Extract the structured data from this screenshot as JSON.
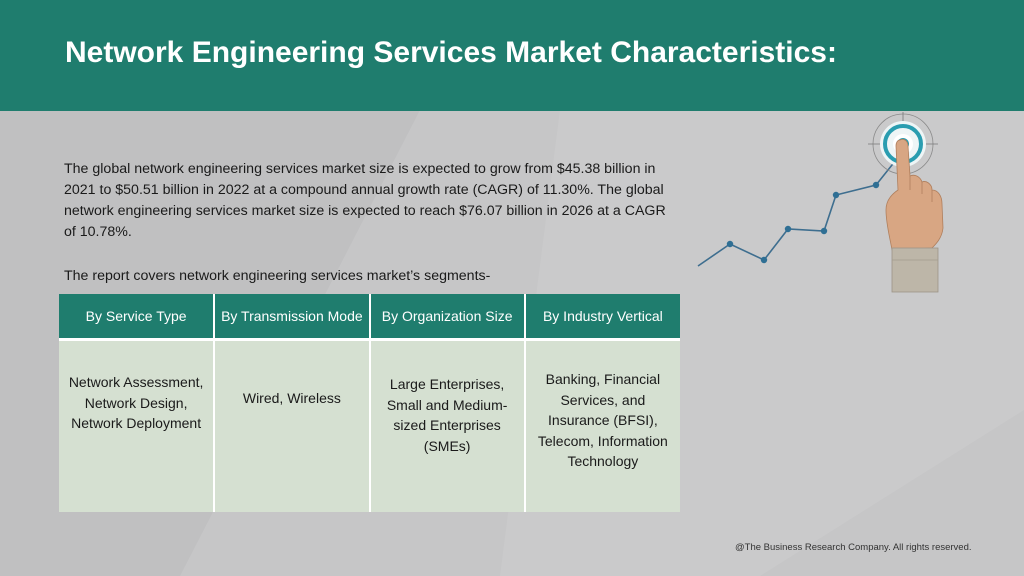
{
  "header": {
    "title": "Network Engineering Services Market Characteristics:"
  },
  "intro": {
    "paragraph": "The global network engineering services market size is expected to grow from $45.38 billion in 2021 to $50.51 billion in 2022 at a compound annual growth rate (CAGR) of 11.30%. The global network engineering services market size is expected to reach $76.07 billion in 2026 at a CAGR of 10.78%.",
    "segments_label": "The report covers network engineering services market’s segments-"
  },
  "table": {
    "headers": [
      "By Service Type",
      "By Transmission Mode",
      "By Organization Size",
      "By Industry Vertical"
    ],
    "cells": [
      "Network Assessment, Network Design, Network Deployment",
      "Wired, Wireless",
      "Large Enterprises, Small and Medium-sized Enterprises (SMEs)",
      "Banking, Financial Services, and Insurance (BFSI), Telecom, Information Technology"
    ]
  },
  "graphic": {
    "icon": "hand-pointing-target-icon",
    "line_icon": "growth-line-icon"
  },
  "footer": {
    "copyright": "@The Business Research Company. All rights reserved."
  },
  "colors": {
    "header_bg": "#1f7d6e",
    "table_header_bg": "#1f7d6e",
    "table_cell_bg": "#d5e0d1",
    "page_bg": "#c6c6c7"
  }
}
